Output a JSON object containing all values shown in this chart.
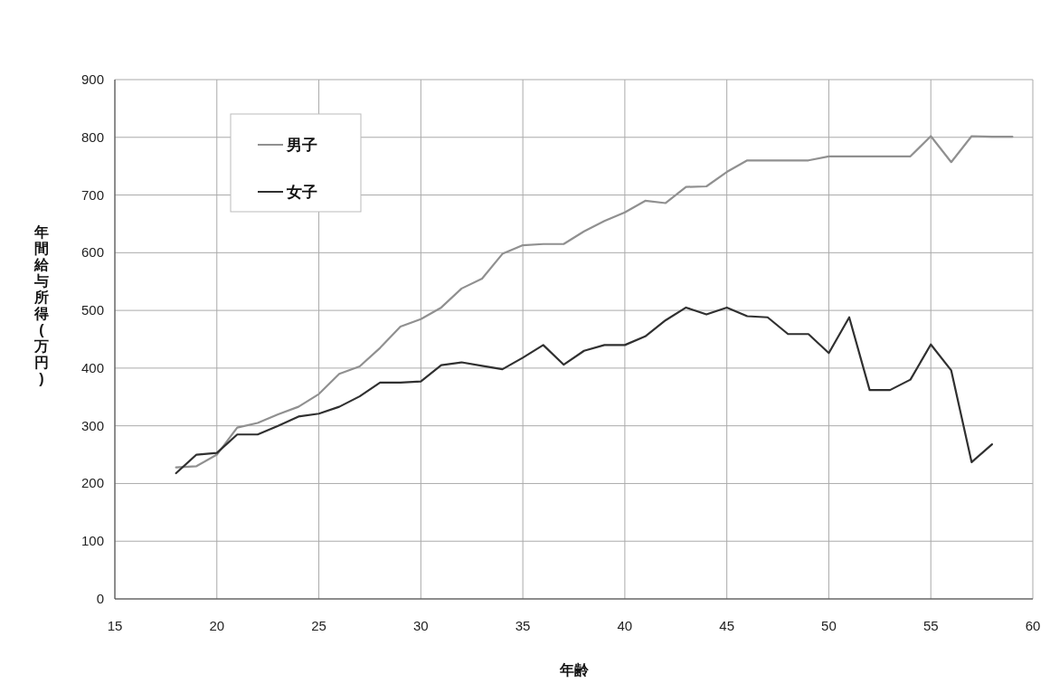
{
  "chart_data": {
    "type": "line",
    "xlabel": "年齢",
    "ylabel": "年間給与所得(万円)",
    "x": [
      18,
      19,
      20,
      21,
      22,
      23,
      24,
      25,
      26,
      27,
      28,
      29,
      30,
      31,
      32,
      33,
      34,
      35,
      36,
      37,
      38,
      39,
      40,
      41,
      42,
      43,
      44,
      45,
      46,
      47,
      48,
      49,
      50,
      51,
      52,
      53,
      54,
      55,
      56,
      57,
      58,
      59
    ],
    "series": [
      {
        "name": "男子",
        "color": "#909090",
        "values": [
          228,
          230,
          250,
          297,
          305,
          320,
          333,
          355,
          390,
          403,
          435,
          472,
          485,
          505,
          538,
          555,
          598,
          613,
          615,
          615,
          637,
          655,
          670,
          690,
          686,
          714,
          715,
          740,
          760,
          760,
          760,
          760,
          767,
          767,
          767,
          767,
          767,
          802,
          757,
          802,
          801,
          801
        ]
      },
      {
        "name": "女子",
        "color": "#303030",
        "values": [
          218,
          250,
          253,
          285,
          285,
          300,
          316,
          321,
          333,
          351,
          375,
          375,
          377,
          405,
          410,
          404,
          398,
          418,
          440,
          406,
          430,
          440,
          440,
          455,
          483,
          505,
          493,
          505,
          490,
          488,
          459,
          459,
          426,
          488,
          362,
          362,
          380,
          441,
          396,
          237,
          268,
          null
        ]
      }
    ],
    "xlim": [
      15,
      60
    ],
    "xticks": [
      15,
      20,
      25,
      30,
      35,
      40,
      45,
      50,
      55,
      60
    ],
    "ylim": [
      0,
      900
    ],
    "yticks": [
      0,
      100,
      200,
      300,
      400,
      500,
      600,
      700,
      800,
      900
    ],
    "grid": true,
    "legend": "top left",
    "marker": "none",
    "line_style": "solid"
  }
}
